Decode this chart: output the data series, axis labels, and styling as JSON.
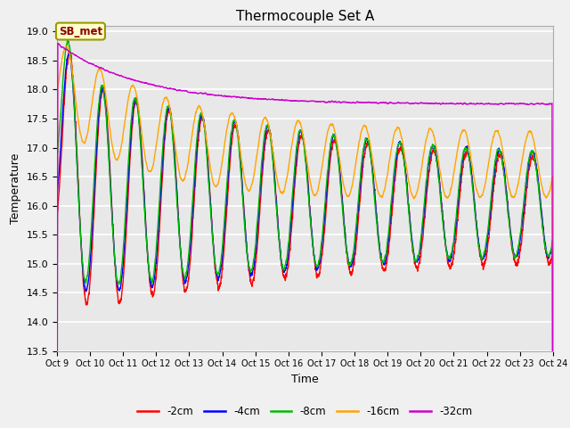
{
  "title": "Thermocouple Set A",
  "xlabel": "Time",
  "ylabel": "Temperature",
  "ylim": [
    13.5,
    19.1
  ],
  "yticks": [
    13.5,
    14.0,
    14.5,
    15.0,
    15.5,
    16.0,
    16.5,
    17.0,
    17.5,
    18.0,
    18.5,
    19.0
  ],
  "xtick_labels": [
    "Oct 9",
    "Oct 10",
    "Oct 11",
    "Oct 12",
    "Oct 13",
    "Oct 14",
    "Oct 15",
    "Oct 16",
    "Oct 17",
    "Oct 18",
    "Oct 19",
    "Oct 20",
    "Oct 21",
    "Oct 22",
    "Oct 23",
    "Oct 24"
  ],
  "colors": {
    "-2cm": "#ff0000",
    "-4cm": "#0000ff",
    "-8cm": "#00bb00",
    "-16cm": "#ffa500",
    "-32cm": "#cc00cc"
  },
  "line_width": 1.0,
  "legend_items": [
    "-2cm",
    "-4cm",
    "-8cm",
    "-16cm",
    "-32cm"
  ],
  "legend_colors": [
    "#ff0000",
    "#0000ff",
    "#00bb00",
    "#ffa500",
    "#cc00cc"
  ],
  "annotation_text": "SB_met",
  "plot_bg_color": "#e8e8e8",
  "grid_color": "#ffffff",
  "title_fontsize": 11,
  "seed": 12345
}
